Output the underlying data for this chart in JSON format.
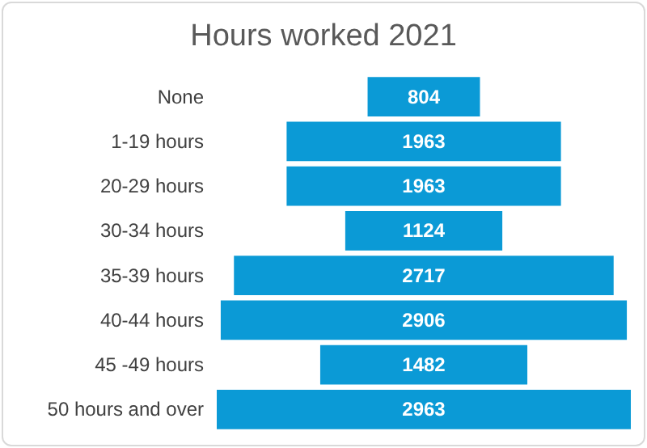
{
  "chart_data": {
    "type": "other",
    "title": "Hours worked 2021",
    "categories": [
      "None",
      "1-19 hours",
      "20-29 hours",
      "30-34 hours",
      "35-39 hours",
      "40-44 hours",
      "45 -49 hours",
      "50 hours and over"
    ],
    "values": [
      804,
      1963,
      1963,
      1124,
      2717,
      2906,
      1482,
      2963
    ],
    "color": "#0b9ad6",
    "data_labels": true
  }
}
